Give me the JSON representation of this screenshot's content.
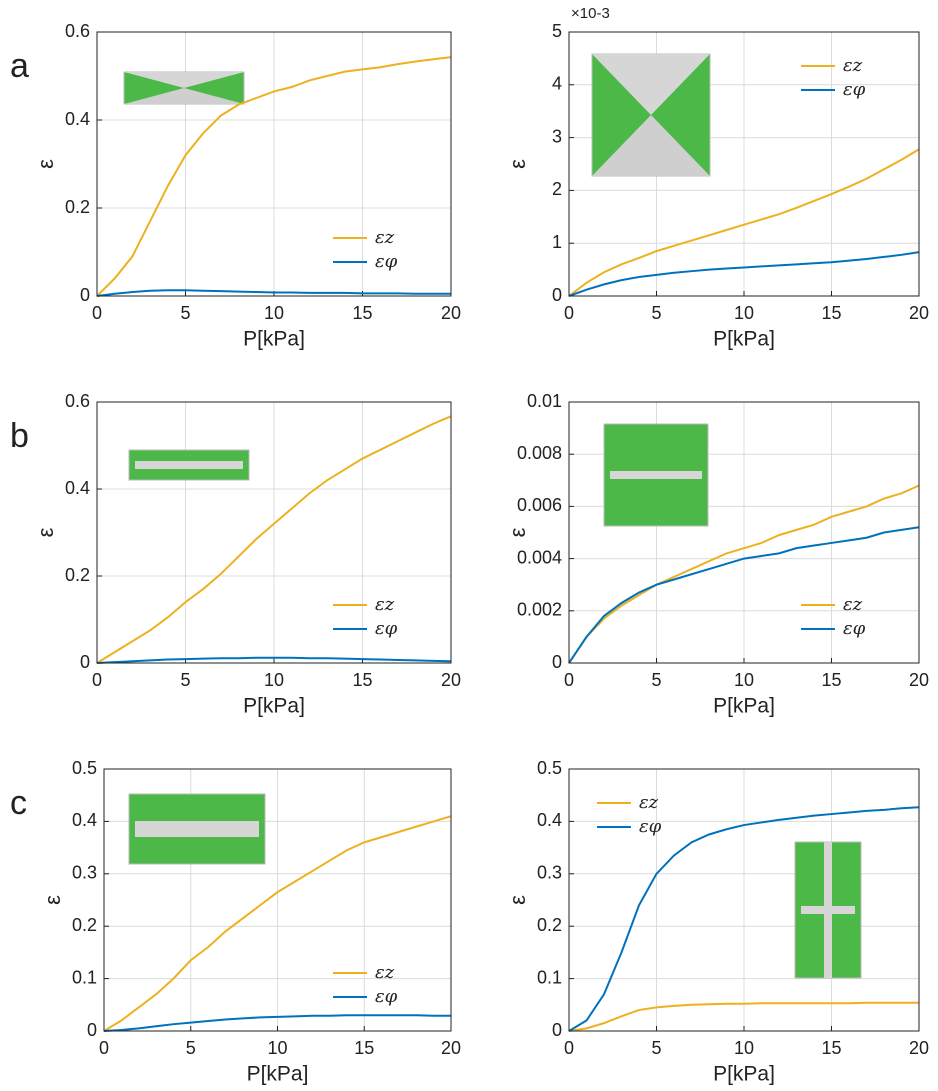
{
  "chart_data": [
    {
      "type": "line",
      "panel_label": "a",
      "xlabel": "P[kPa]",
      "ylabel": "ε",
      "legend": "lower right",
      "grid": true,
      "x": [
        0,
        1,
        2,
        3,
        4,
        5,
        6,
        7,
        8,
        9,
        10,
        11,
        12,
        13,
        14,
        15,
        16,
        17,
        18,
        19,
        20
      ],
      "xlim": [
        0,
        20
      ],
      "xticks": [
        0,
        5,
        10,
        15,
        20
      ],
      "ylim": [
        0,
        0.6
      ],
      "yticks": [
        0,
        0.2,
        0.4,
        0.6
      ],
      "series": [
        {
          "name": "εz",
          "color": "#edb120",
          "values": [
            0,
            0.04,
            0.09,
            0.17,
            0.25,
            0.32,
            0.37,
            0.41,
            0.435,
            0.45,
            0.465,
            0.475,
            0.49,
            0.5,
            0.51,
            0.515,
            0.52,
            0.527,
            0.533,
            0.538,
            0.543
          ]
        },
        {
          "name": "εφ",
          "color": "#0072bd",
          "values": [
            0,
            0.005,
            0.009,
            0.012,
            0.013,
            0.013,
            0.012,
            0.011,
            0.01,
            0.009,
            0.008,
            0.008,
            0.007,
            0.007,
            0.007,
            0.006,
            0.006,
            0.006,
            0.005,
            0.005,
            0.005
          ]
        }
      ]
    },
    {
      "type": "line",
      "xlabel": "P[kPa]",
      "ylabel": "ε",
      "legend": "upper right",
      "grid": true,
      "y_multiplier_label": "×10-3",
      "x": [
        0,
        1,
        2,
        3,
        4,
        5,
        6,
        7,
        8,
        9,
        10,
        11,
        12,
        13,
        14,
        15,
        16,
        17,
        18,
        19,
        20
      ],
      "xlim": [
        0,
        20
      ],
      "xticks": [
        0,
        5,
        10,
        15,
        20
      ],
      "ylim": [
        0,
        5
      ],
      "yticks": [
        0,
        1,
        2,
        3,
        4,
        5
      ],
      "series": [
        {
          "name": "εz",
          "color": "#edb120",
          "values": [
            0,
            0.25,
            0.45,
            0.6,
            0.72,
            0.85,
            0.95,
            1.05,
            1.15,
            1.25,
            1.35,
            1.45,
            1.55,
            1.67,
            1.8,
            1.93,
            2.07,
            2.22,
            2.4,
            2.58,
            2.78
          ]
        },
        {
          "name": "εφ",
          "color": "#0072bd",
          "values": [
            0,
            0.12,
            0.22,
            0.3,
            0.36,
            0.4,
            0.44,
            0.47,
            0.5,
            0.52,
            0.54,
            0.56,
            0.58,
            0.6,
            0.62,
            0.64,
            0.67,
            0.7,
            0.74,
            0.78,
            0.83
          ]
        }
      ]
    },
    {
      "type": "line",
      "panel_label": "b",
      "xlabel": "P[kPa]",
      "ylabel": "ε",
      "legend": "lower right",
      "grid": true,
      "x": [
        0,
        1,
        2,
        3,
        4,
        5,
        6,
        7,
        8,
        9,
        10,
        11,
        12,
        13,
        14,
        15,
        16,
        17,
        18,
        19,
        20
      ],
      "xlim": [
        0,
        20
      ],
      "xticks": [
        0,
        5,
        10,
        15,
        20
      ],
      "ylim": [
        0,
        0.6
      ],
      "yticks": [
        0,
        0.2,
        0.4,
        0.6
      ],
      "series": [
        {
          "name": "εz",
          "color": "#edb120",
          "values": [
            0,
            0.025,
            0.05,
            0.075,
            0.105,
            0.14,
            0.17,
            0.205,
            0.245,
            0.285,
            0.32,
            0.355,
            0.39,
            0.42,
            0.445,
            0.47,
            0.49,
            0.51,
            0.53,
            0.55,
            0.567
          ]
        },
        {
          "name": "εφ",
          "color": "#0072bd",
          "values": [
            0,
            0.002,
            0.004,
            0.006,
            0.008,
            0.009,
            0.01,
            0.011,
            0.011,
            0.012,
            0.012,
            0.012,
            0.011,
            0.011,
            0.01,
            0.009,
            0.008,
            0.007,
            0.006,
            0.005,
            0.004
          ]
        }
      ]
    },
    {
      "type": "line",
      "xlabel": "P[kPa]",
      "ylabel": "ε",
      "legend": "lower right",
      "grid": true,
      "x": [
        0,
        1,
        2,
        3,
        4,
        5,
        6,
        7,
        8,
        9,
        10,
        11,
        12,
        13,
        14,
        15,
        16,
        17,
        18,
        19,
        20
      ],
      "xlim": [
        0,
        20
      ],
      "xticks": [
        0,
        5,
        10,
        15,
        20
      ],
      "ylim": [
        0,
        0.01
      ],
      "yticks": [
        0,
        0.002,
        0.004,
        0.006,
        0.008,
        0.01
      ],
      "series": [
        {
          "name": "εz",
          "color": "#edb120",
          "values": [
            0,
            0.001,
            0.0017,
            0.0022,
            0.0026,
            0.003,
            0.0033,
            0.0036,
            0.0039,
            0.0042,
            0.0044,
            0.0046,
            0.0049,
            0.0051,
            0.0053,
            0.0056,
            0.0058,
            0.006,
            0.0063,
            0.0065,
            0.0068
          ]
        },
        {
          "name": "εφ",
          "color": "#0072bd",
          "values": [
            0,
            0.001,
            0.0018,
            0.0023,
            0.0027,
            0.003,
            0.0032,
            0.0034,
            0.0036,
            0.0038,
            0.004,
            0.0041,
            0.0042,
            0.0044,
            0.0045,
            0.0046,
            0.0047,
            0.0048,
            0.005,
            0.0051,
            0.0052
          ]
        }
      ]
    },
    {
      "type": "line",
      "panel_label": "c",
      "xlabel": "P[kPa]",
      "ylabel": "ε",
      "legend": "lower right",
      "grid": true,
      "x": [
        0,
        1,
        2,
        3,
        4,
        5,
        6,
        7,
        8,
        9,
        10,
        11,
        12,
        13,
        14,
        15,
        16,
        17,
        18,
        19,
        20
      ],
      "xlim": [
        0,
        20
      ],
      "xticks": [
        0,
        5,
        10,
        15,
        20
      ],
      "ylim": [
        0,
        0.5
      ],
      "yticks": [
        0,
        0.1,
        0.2,
        0.3,
        0.4,
        0.5
      ],
      "series": [
        {
          "name": "εz",
          "color": "#edb120",
          "values": [
            0,
            0.02,
            0.045,
            0.07,
            0.1,
            0.135,
            0.16,
            0.19,
            0.215,
            0.24,
            0.265,
            0.285,
            0.305,
            0.325,
            0.345,
            0.36,
            0.37,
            0.38,
            0.39,
            0.4,
            0.41
          ]
        },
        {
          "name": "εφ",
          "color": "#0072bd",
          "values": [
            0,
            0.002,
            0.005,
            0.009,
            0.013,
            0.016,
            0.019,
            0.022,
            0.024,
            0.026,
            0.027,
            0.028,
            0.029,
            0.029,
            0.03,
            0.03,
            0.03,
            0.03,
            0.03,
            0.029,
            0.029
          ]
        }
      ]
    },
    {
      "type": "line",
      "xlabel": "P[kPa]",
      "ylabel": "ε",
      "legend": "upper left",
      "grid": true,
      "x": [
        0,
        1,
        2,
        3,
        4,
        5,
        6,
        7,
        8,
        9,
        10,
        11,
        12,
        13,
        14,
        15,
        16,
        17,
        18,
        19,
        20
      ],
      "xlim": [
        0,
        20
      ],
      "xticks": [
        0,
        5,
        10,
        15,
        20
      ],
      "ylim": [
        0,
        0.5
      ],
      "yticks": [
        0,
        0.1,
        0.2,
        0.3,
        0.4,
        0.5
      ],
      "series": [
        {
          "name": "εz",
          "color": "#edb120",
          "values": [
            0,
            0.005,
            0.015,
            0.028,
            0.04,
            0.045,
            0.048,
            0.05,
            0.051,
            0.052,
            0.052,
            0.053,
            0.053,
            0.053,
            0.053,
            0.053,
            0.053,
            0.054,
            0.054,
            0.054,
            0.054
          ]
        },
        {
          "name": "εφ",
          "color": "#0072bd",
          "values": [
            0,
            0.02,
            0.07,
            0.15,
            0.24,
            0.3,
            0.335,
            0.36,
            0.375,
            0.385,
            0.393,
            0.398,
            0.403,
            0.407,
            0.411,
            0.414,
            0.417,
            0.42,
            0.422,
            0.425,
            0.427
          ]
        }
      ]
    }
  ]
}
